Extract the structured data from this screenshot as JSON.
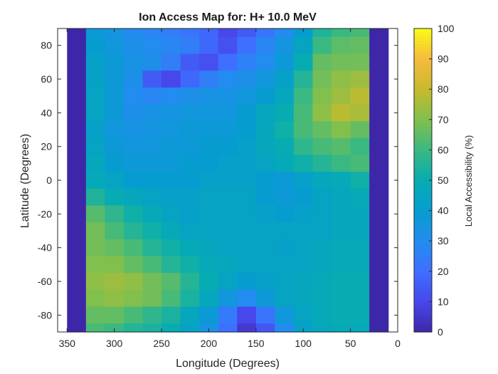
{
  "chart_data": {
    "type": "heatmap",
    "title": "Ion Access Map for: H+ 10.0 MeV",
    "xlabel": "Longitude (Degrees)",
    "ylabel": "Latitude (Degrees)",
    "colorbar_label": "Local Accessibility (%)",
    "xlim": [
      360,
      0
    ],
    "x_reversed": true,
    "ylim": [
      -90,
      90
    ],
    "clim": [
      0,
      100
    ],
    "colormap": "parula",
    "xticks": [
      350,
      300,
      250,
      200,
      150,
      100,
      50,
      0
    ],
    "yticks": [
      80,
      60,
      40,
      20,
      0,
      -20,
      -40,
      -60,
      -80
    ],
    "cticks": [
      0,
      10,
      20,
      30,
      40,
      50,
      60,
      70,
      80,
      90,
      100
    ],
    "lon": [
      340,
      320,
      300,
      280,
      260,
      240,
      220,
      200,
      180,
      160,
      140,
      120,
      100,
      80,
      60,
      40,
      20
    ],
    "lat": [
      90,
      80,
      70,
      60,
      50,
      40,
      30,
      20,
      10,
      0,
      -10,
      -20,
      -30,
      -40,
      -50,
      -60,
      -70,
      -80,
      -90
    ],
    "values": [
      [
        0,
        38,
        35,
        30,
        28,
        25,
        22,
        18,
        10,
        15,
        22,
        30,
        40,
        55,
        60,
        62,
        0
      ],
      [
        0,
        40,
        36,
        32,
        30,
        28,
        25,
        18,
        12,
        20,
        28,
        35,
        45,
        60,
        65,
        66,
        0
      ],
      [
        0,
        42,
        38,
        34,
        32,
        25,
        15,
        12,
        20,
        26,
        30,
        38,
        50,
        66,
        68,
        68,
        0
      ],
      [
        0,
        43,
        38,
        32,
        15,
        10,
        18,
        25,
        30,
        32,
        36,
        42,
        56,
        68,
        72,
        74,
        0
      ],
      [
        0,
        44,
        38,
        30,
        28,
        30,
        32,
        34,
        34,
        36,
        40,
        46,
        60,
        70,
        74,
        78,
        0
      ],
      [
        0,
        44,
        38,
        32,
        34,
        35,
        36,
        36,
        36,
        40,
        46,
        50,
        62,
        72,
        78,
        76,
        0
      ],
      [
        0,
        42,
        36,
        34,
        35,
        36,
        38,
        38,
        38,
        40,
        46,
        52,
        62,
        66,
        70,
        66,
        0
      ],
      [
        0,
        44,
        38,
        36,
        36,
        38,
        38,
        40,
        40,
        42,
        46,
        50,
        58,
        62,
        64,
        60,
        0
      ],
      [
        0,
        46,
        40,
        38,
        38,
        38,
        40,
        40,
        42,
        42,
        44,
        48,
        52,
        56,
        60,
        62,
        0
      ],
      [
        0,
        48,
        44,
        40,
        40,
        40,
        40,
        42,
        42,
        42,
        40,
        38,
        42,
        46,
        48,
        52,
        0
      ],
      [
        0,
        55,
        50,
        46,
        44,
        42,
        42,
        44,
        44,
        44,
        40,
        38,
        40,
        44,
        46,
        48,
        0
      ],
      [
        0,
        64,
        58,
        52,
        48,
        44,
        42,
        44,
        44,
        44,
        42,
        40,
        42,
        44,
        46,
        46,
        0
      ],
      [
        0,
        68,
        62,
        56,
        52,
        48,
        44,
        44,
        44,
        44,
        44,
        44,
        44,
        44,
        46,
        46,
        0
      ],
      [
        0,
        68,
        66,
        62,
        56,
        52,
        48,
        46,
        44,
        44,
        44,
        42,
        44,
        46,
        48,
        48,
        0
      ],
      [
        0,
        70,
        70,
        66,
        62,
        56,
        52,
        48,
        46,
        44,
        44,
        44,
        44,
        46,
        48,
        48,
        0
      ],
      [
        0,
        72,
        74,
        72,
        68,
        64,
        56,
        50,
        44,
        40,
        42,
        44,
        46,
        48,
        50,
        50,
        0
      ],
      [
        0,
        70,
        72,
        70,
        68,
        62,
        54,
        46,
        36,
        30,
        38,
        44,
        46,
        48,
        50,
        50,
        0
      ],
      [
        0,
        66,
        66,
        62,
        58,
        54,
        46,
        38,
        24,
        10,
        22,
        36,
        44,
        48,
        50,
        50,
        0
      ],
      [
        0,
        62,
        60,
        56,
        54,
        50,
        44,
        34,
        20,
        6,
        14,
        30,
        42,
        46,
        48,
        48,
        0
      ]
    ]
  }
}
